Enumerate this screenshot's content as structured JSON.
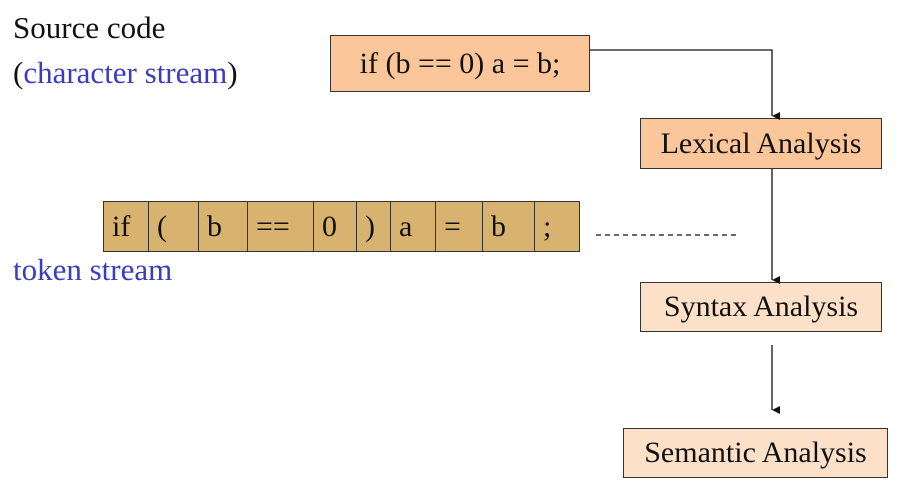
{
  "source": {
    "title": "Source code",
    "subtitle_open": "(",
    "subtitle_text": "character stream",
    "subtitle_close": ")",
    "code": "if (b == 0) a = b;"
  },
  "token_stream": {
    "label": "token stream",
    "tokens": [
      "if",
      "(",
      "b",
      "==",
      "0",
      ")",
      "a",
      "=",
      "b",
      ";"
    ]
  },
  "stages": [
    "Lexical Analysis",
    "Syntax Analysis",
    "Semantic Analysis"
  ],
  "colors": {
    "code_fill": "#fbc79a",
    "token_fill": "#d8b26f",
    "stage_fill_strong": "#fbc79a",
    "stage_fill_light": "#fde0c8",
    "label_blue": "#3b3bbd"
  }
}
